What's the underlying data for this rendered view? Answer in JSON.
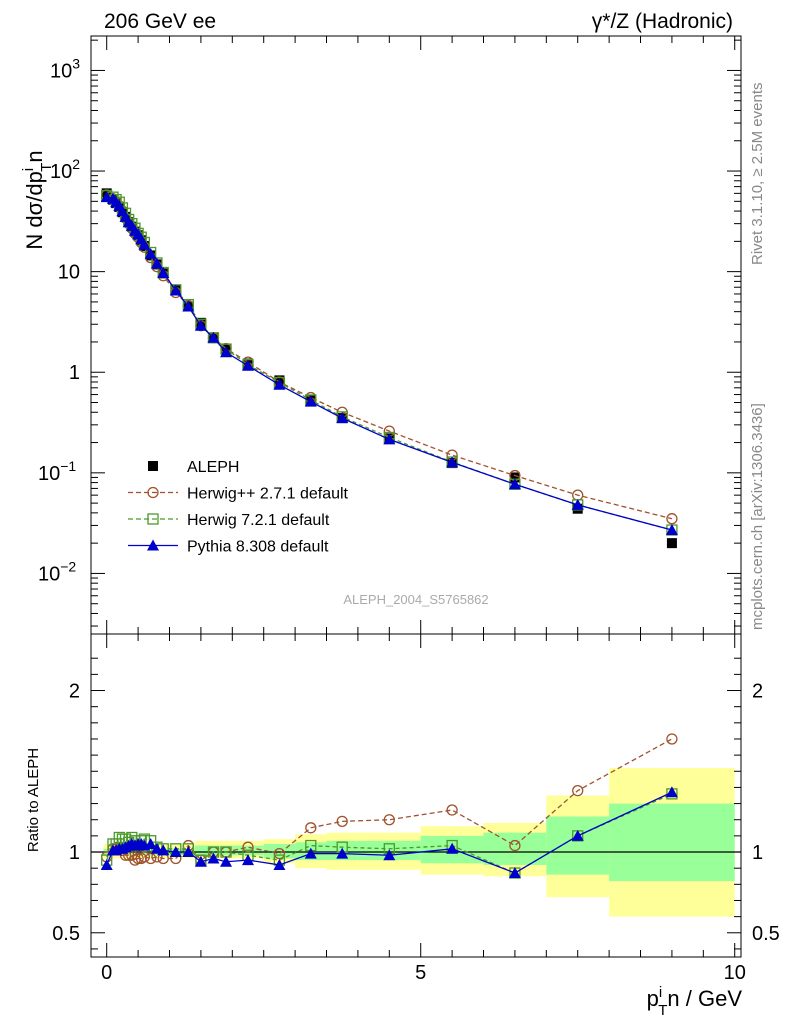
{
  "header": {
    "left": "206 GeV ee",
    "right": "γ*/Z (Hadronic)"
  },
  "side_labels": {
    "rivet": "Rivet 3.1.10, ≥ 2.5M events",
    "mcplots": "mcplots.cern.ch [arXiv:1306.3436]"
  },
  "watermark": "ALEPH_2004_S5765862",
  "colors": {
    "aleph": "#000000",
    "herwigpp": "#a0522d",
    "herwig7": "#4a9a2a",
    "pythia": "#0000cc",
    "band_stat": "#99ff99",
    "band_syst": "#ffff99"
  },
  "chart_data": [
    {
      "type": "scatter",
      "title": "",
      "ylabel_main": "N dσ/dp",
      "ylabel_sup": "i",
      "ylabel_sub": "T",
      "ylabel_tail": "n",
      "yscale": "log",
      "ylim": [
        0.0025,
        2200
      ],
      "xlim": [
        -0.25,
        10.1
      ],
      "yticks": [
        {
          "v": 0.01,
          "label": "10",
          "exp": "−2"
        },
        {
          "v": 0.1,
          "label": "10",
          "exp": "−1"
        },
        {
          "v": 1,
          "label": "1",
          "exp": ""
        },
        {
          "v": 10,
          "label": "10",
          "exp": ""
        },
        {
          "v": 100,
          "label": "10",
          "exp": "2"
        },
        {
          "v": 1000,
          "label": "10",
          "exp": "3"
        }
      ],
      "x": [
        0.0,
        0.1,
        0.15,
        0.2,
        0.25,
        0.3,
        0.35,
        0.4,
        0.45,
        0.5,
        0.55,
        0.6,
        0.7,
        0.8,
        0.9,
        1.1,
        1.3,
        1.5,
        1.7,
        1.9,
        2.25,
        2.75,
        3.25,
        3.75,
        4.5,
        5.5,
        6.5,
        7.5,
        9.0
      ],
      "series": [
        {
          "name": "ALEPH",
          "key": "aleph",
          "values": [
            60,
            52,
            48,
            44,
            39,
            35,
            31,
            28,
            25,
            23,
            20.5,
            18,
            14.5,
            11.8,
            9.6,
            6.5,
            4.5,
            3.1,
            2.2,
            1.68,
            1.22,
            0.83,
            0.53,
            0.35,
            0.22,
            0.125,
            0.09,
            0.044,
            0.02
          ]
        },
        {
          "name": "Herwig++ 2.7.1 default",
          "key": "herwigpp",
          "values": [
            58,
            53,
            49,
            45,
            40,
            34,
            30,
            27,
            24,
            22,
            19.5,
            17.5,
            13.8,
            11.2,
            9.1,
            6.2,
            4.6,
            2.9,
            2.2,
            1.72,
            1.26,
            0.8,
            0.56,
            0.4,
            0.26,
            0.15,
            0.094,
            0.06,
            0.035
          ]
        },
        {
          "name": "Herwig 7.2.1 default",
          "key": "herwig7",
          "values": [
            57,
            55,
            52,
            49,
            43,
            38,
            33,
            30,
            27,
            24,
            22,
            19.5,
            15.5,
            12.2,
            9.8,
            6.6,
            4.7,
            3.0,
            2.2,
            1.7,
            1.19,
            0.79,
            0.53,
            0.36,
            0.225,
            0.128,
            0.077,
            0.048,
            0.027
          ]
        },
        {
          "name": "Pythia 8.308 default",
          "key": "pythia",
          "values": [
            55,
            53,
            49,
            45,
            40,
            35,
            31,
            28.5,
            25.5,
            23.5,
            21,
            18.5,
            15,
            12,
            9.7,
            6.5,
            4.5,
            2.9,
            2.2,
            1.58,
            1.16,
            0.75,
            0.51,
            0.35,
            0.215,
            0.127,
            0.077,
            0.048,
            0.027
          ]
        }
      ]
    },
    {
      "type": "scatter",
      "title": "",
      "ylabel": "Ratio to ALEPH",
      "xlabel_main": "p",
      "xlabel_sup": "i",
      "xlabel_sub": "T",
      "xlabel_tail": "n / GeV",
      "ylim": [
        0.35,
        2.35
      ],
      "xlim": [
        -0.25,
        10.1
      ],
      "xticks": [
        0,
        5,
        10
      ],
      "yticks": [
        0.5,
        1,
        2
      ],
      "x": [
        0.0,
        0.1,
        0.15,
        0.2,
        0.25,
        0.3,
        0.35,
        0.4,
        0.45,
        0.5,
        0.55,
        0.6,
        0.7,
        0.8,
        0.9,
        1.1,
        1.3,
        1.5,
        1.7,
        1.9,
        2.25,
        2.75,
        3.25,
        3.75,
        4.5,
        5.5,
        6.5,
        7.5,
        9.0
      ],
      "series": [
        {
          "name": "Herwig++ 2.7.1 default",
          "key": "herwigpp",
          "values": [
            0.97,
            1.02,
            1.02,
            1.02,
            1.01,
            0.98,
            0.98,
            0.98,
            0.95,
            0.96,
            0.96,
            0.97,
            0.96,
            0.97,
            0.96,
            0.96,
            1.04,
            0.95,
            1.0,
            1.0,
            1.03,
            0.99,
            1.15,
            1.19,
            1.2,
            1.26,
            1.04,
            1.38,
            1.7
          ]
        },
        {
          "name": "Herwig 7.2.1 default",
          "key": "herwig7",
          "values": [
            0.95,
            1.05,
            1.05,
            1.09,
            1.08,
            1.08,
            1.06,
            1.09,
            1.07,
            1.04,
            1.07,
            1.08,
            1.07,
            1.03,
            1.02,
            1.02,
            1.02,
            0.95,
            1.0,
            1.0,
            0.98,
            0.95,
            1.04,
            1.03,
            1.02,
            1.04,
            0.87,
            1.1,
            1.36
          ]
        },
        {
          "name": "Pythia 8.308 default",
          "key": "pythia",
          "values": [
            0.92,
            1.01,
            1.01,
            1.02,
            1.02,
            1.03,
            1.04,
            1.05,
            1.04,
            1.05,
            1.05,
            1.04,
            1.05,
            1.02,
            1.01,
            1.0,
            1.0,
            0.94,
            0.96,
            0.94,
            0.95,
            0.92,
            0.99,
            0.99,
            0.98,
            1.02,
            0.87,
            1.1,
            1.37
          ]
        }
      ],
      "bands": [
        {
          "x0": -0.05,
          "x1": 1.4,
          "syst": [
            0.96,
            1.05
          ],
          "stat": [
            0.98,
            1.02
          ]
        },
        {
          "x0": 1.4,
          "x1": 2.5,
          "syst": [
            0.96,
            1.07
          ],
          "stat": [
            0.98,
            1.04
          ]
        },
        {
          "x0": 2.5,
          "x1": 3.0,
          "syst": [
            0.93,
            1.08
          ],
          "stat": [
            0.96,
            1.05
          ]
        },
        {
          "x0": 3.0,
          "x1": 3.5,
          "syst": [
            0.9,
            1.11
          ],
          "stat": [
            0.95,
            1.06
          ]
        },
        {
          "x0": 3.5,
          "x1": 4.0,
          "syst": [
            0.89,
            1.12
          ],
          "stat": [
            0.95,
            1.07
          ]
        },
        {
          "x0": 4.0,
          "x1": 5.0,
          "syst": [
            0.89,
            1.12
          ],
          "stat": [
            0.95,
            1.07
          ]
        },
        {
          "x0": 5.0,
          "x1": 6.0,
          "syst": [
            0.86,
            1.16
          ],
          "stat": [
            0.93,
            1.1
          ]
        },
        {
          "x0": 6.0,
          "x1": 7.0,
          "syst": [
            0.85,
            1.18
          ],
          "stat": [
            0.92,
            1.12
          ]
        },
        {
          "x0": 7.0,
          "x1": 8.0,
          "syst": [
            0.72,
            1.35
          ],
          "stat": [
            0.86,
            1.22
          ]
        },
        {
          "x0": 8.0,
          "x1": 10.0,
          "syst": [
            0.6,
            1.52
          ],
          "stat": [
            0.82,
            1.3
          ]
        }
      ]
    }
  ]
}
